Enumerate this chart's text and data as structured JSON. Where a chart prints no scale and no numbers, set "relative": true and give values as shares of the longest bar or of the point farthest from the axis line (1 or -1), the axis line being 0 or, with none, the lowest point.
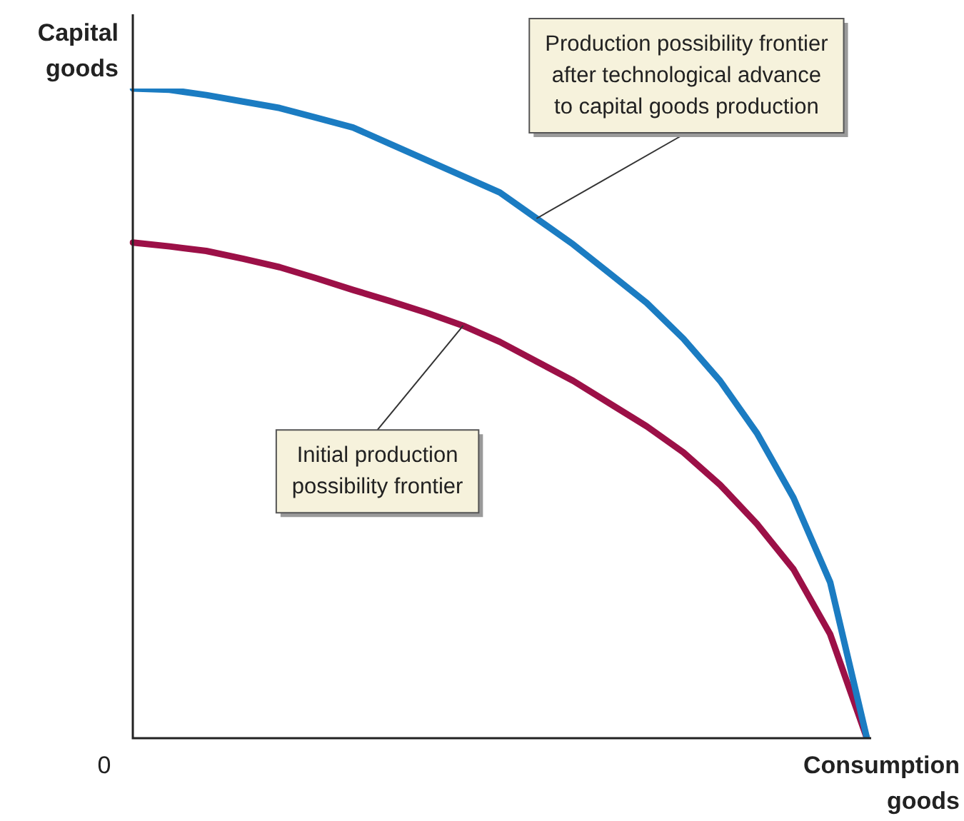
{
  "chart_data": {
    "type": "line",
    "relative": true,
    "xlabel": "Consumption\ngoods",
    "ylabel": "Capital\ngoods",
    "legend": false,
    "marker": "none",
    "line_style": "solid",
    "categories": [
      null,
      null,
      null,
      null,
      null,
      null,
      null,
      null,
      null,
      null,
      null,
      null,
      null,
      null,
      null,
      null,
      null,
      null,
      null,
      null,
      null
    ],
    "series": [
      {
        "color": "#1b7cc2",
        "values": [
          1,
          0.998,
          0.99,
          0.98,
          0.97,
          0.955,
          0.94,
          0.915,
          0.89,
          0.865,
          0.84,
          0.8,
          0.76,
          0.715,
          0.67,
          0.615,
          0.55,
          0.47,
          0.37,
          0.24,
          0
        ]
      },
      {
        "color": "#9c1047",
        "values": [
          0.763,
          0.757,
          0.75,
          0.738,
          0.725,
          0.708,
          0.69,
          0.673,
          0.655,
          0.635,
          0.61,
          0.58,
          0.55,
          0.515,
          0.48,
          0.44,
          0.39,
          0.33,
          0.26,
          0.16,
          0
        ]
      }
    ],
    "annotations": [
      "0",
      "Production possibility frontier\nafter technological advance\nto capital goods production",
      "Initial production\npossibility frontier"
    ]
  }
}
